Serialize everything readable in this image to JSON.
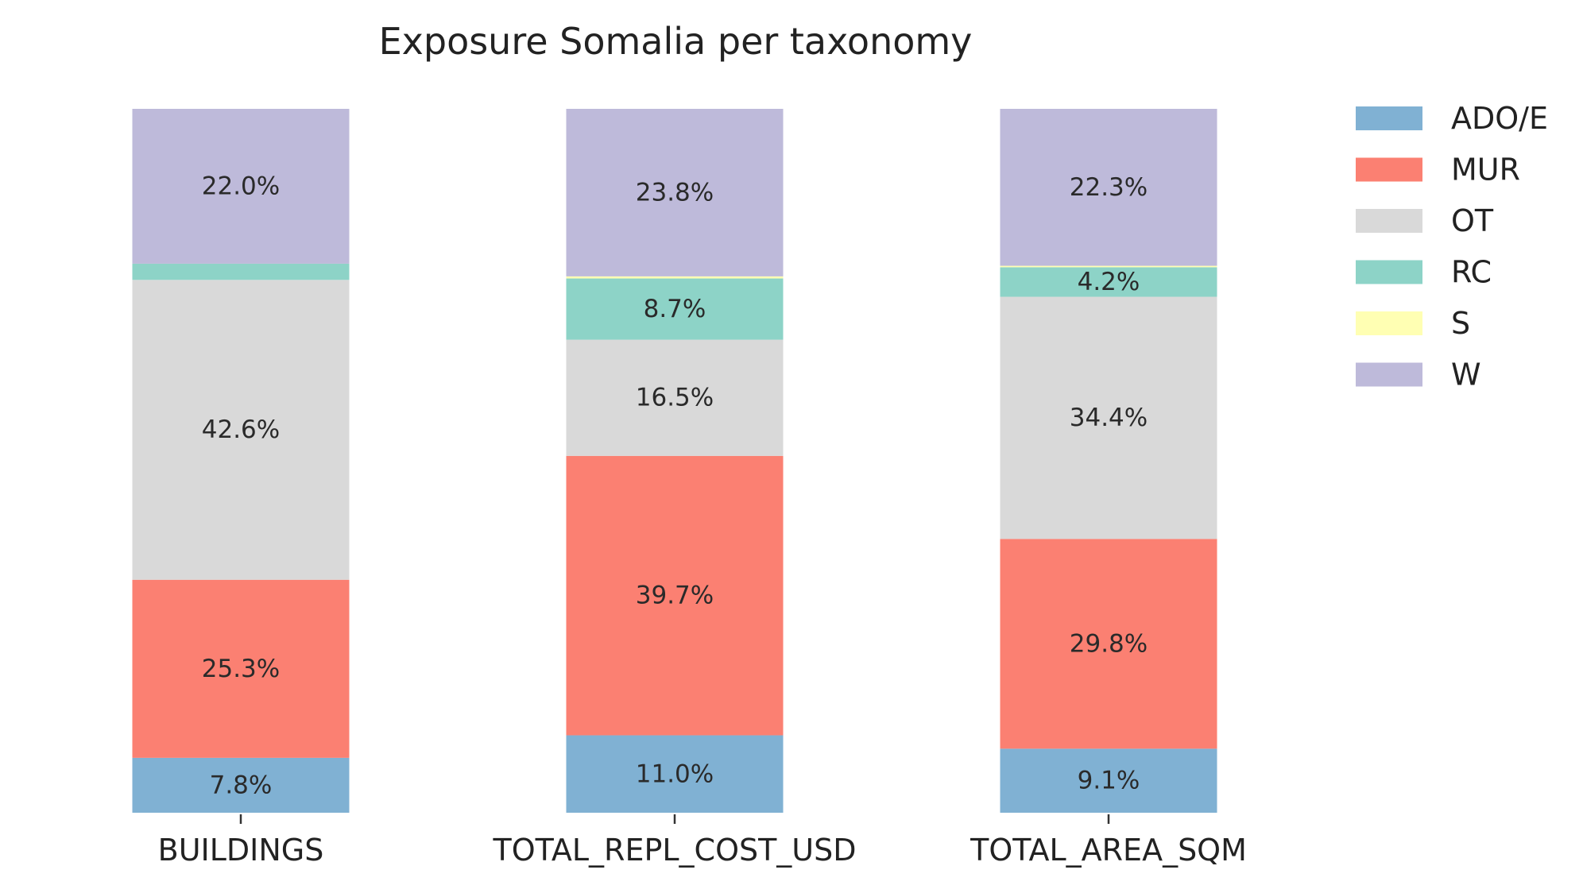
{
  "chart_data": {
    "type": "bar",
    "stacked": true,
    "normalized": true,
    "title": "Exposure Somalia per taxonomy",
    "xlabel": "",
    "ylabel": "",
    "ylim": [
      0,
      100
    ],
    "categories": [
      "BUILDINGS",
      "TOTAL_REPL_COST_USD",
      "TOTAL_AREA_SQM"
    ],
    "series": [
      {
        "name": "ADO/E",
        "color": "#80b1d3",
        "values": [
          7.8,
          11.0,
          9.1
        ],
        "labels": [
          "7.8%",
          "11.0%",
          "9.1%"
        ]
      },
      {
        "name": "MUR",
        "color": "#fb8072",
        "values": [
          25.3,
          39.7,
          29.8
        ],
        "labels": [
          "25.3%",
          "39.7%",
          "29.8%"
        ]
      },
      {
        "name": "OT",
        "color": "#d9d9d9",
        "values": [
          42.6,
          16.5,
          34.4
        ],
        "labels": [
          "42.6%",
          "16.5%",
          "34.4%"
        ]
      },
      {
        "name": "RC",
        "color": "#8dd3c7",
        "values": [
          2.3,
          8.7,
          4.2
        ],
        "labels": [
          "",
          "8.7%",
          "4.2%"
        ]
      },
      {
        "name": "S",
        "color": "#ffffb3",
        "values": [
          0.0,
          0.3,
          0.2
        ],
        "labels": [
          "",
          "",
          ""
        ]
      },
      {
        "name": "W",
        "color": "#bebada",
        "values": [
          22.0,
          23.8,
          22.3
        ],
        "labels": [
          "22.0%",
          "23.8%",
          "22.3%"
        ]
      }
    ],
    "legend": {
      "position": "top-right",
      "entries": [
        "ADO/E",
        "MUR",
        "OT",
        "RC",
        "S",
        "W"
      ]
    },
    "grid": false
  }
}
